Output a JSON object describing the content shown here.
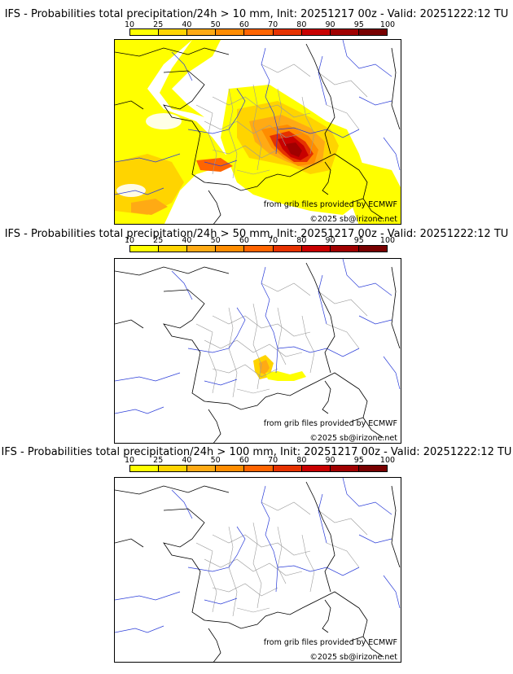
{
  "panels": [
    {
      "title": "IFS - Probabilities total precipitation/24h > 10 mm, Init: 20251217 00z - Valid: 20251222:12 TU",
      "threshold_mm": 10
    },
    {
      "title": "IFS - Probabilities total precipitation/24h > 50 mm, Init: 20251217 00z - Valid: 20251222:12 TU",
      "threshold_mm": 50
    },
    {
      "title": "IFS - Probabilities total precipitation/24h > 100 mm, Init: 20251217 00z - Valid: 20251222:12 TU",
      "threshold_mm": 100
    }
  ],
  "colorbar": {
    "ticks": [
      "10",
      "25",
      "40",
      "50",
      "60",
      "70",
      "80",
      "90",
      "95",
      "100"
    ],
    "colors": [
      "#ffff00",
      "#ffd400",
      "#ffaa14",
      "#ff8c00",
      "#ff6400",
      "#e63200",
      "#c80000",
      "#a00000",
      "#780000"
    ]
  },
  "credits": {
    "source": "from grib files provided by ECMWF",
    "copyright": "©2025 sb@irizone.net"
  },
  "map_colors": {
    "coast": "#000000",
    "rivers": "#2a3cd8",
    "regions": "#9a9a9a"
  }
}
